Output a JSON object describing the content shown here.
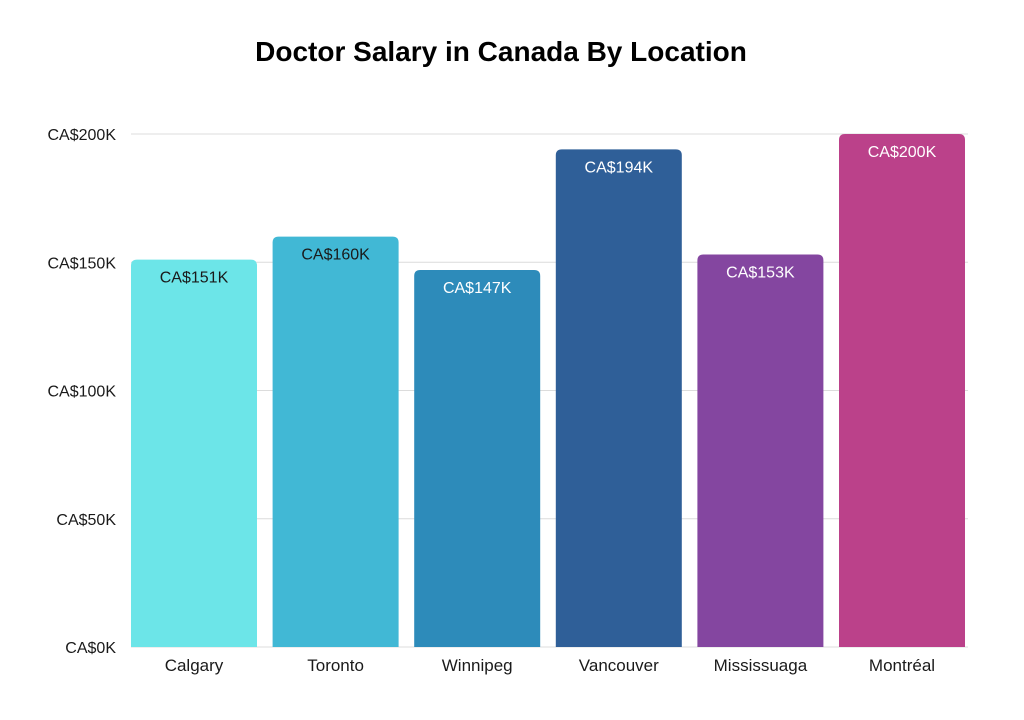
{
  "chart_data": {
    "type": "bar",
    "title": "Doctor Salary in Canada By Location",
    "xlabel": "",
    "ylabel": "",
    "categories": [
      "Calgary",
      "Toronto",
      "Winnipeg",
      "Vancouver",
      "Mississuaga",
      "Montréal"
    ],
    "values": [
      151,
      160,
      147,
      194,
      153,
      200
    ],
    "value_labels": [
      "CA$151K",
      "CA$160K",
      "CA$147K",
      "CA$194K",
      "CA$153K",
      "CA$200K"
    ],
    "value_unit": "thousand CAD",
    "ylim": [
      0,
      200
    ],
    "yticks": [
      0,
      50,
      100,
      150,
      200
    ],
    "ytick_labels": [
      "CA$0K",
      "CA$50K",
      "CA$100K",
      "CA$150K",
      "CA$200K"
    ],
    "bar_colors": [
      "#6ce5e8",
      "#41b8d5",
      "#2d8bba",
      "#2f5f98",
      "#8446a0",
      "#bb418a"
    ],
    "label_colors": [
      "#1a1a1a",
      "#1a1a1a",
      "#ffffff",
      "#ffffff",
      "#ffffff",
      "#ffffff"
    ],
    "grid": true,
    "legend": "none"
  }
}
